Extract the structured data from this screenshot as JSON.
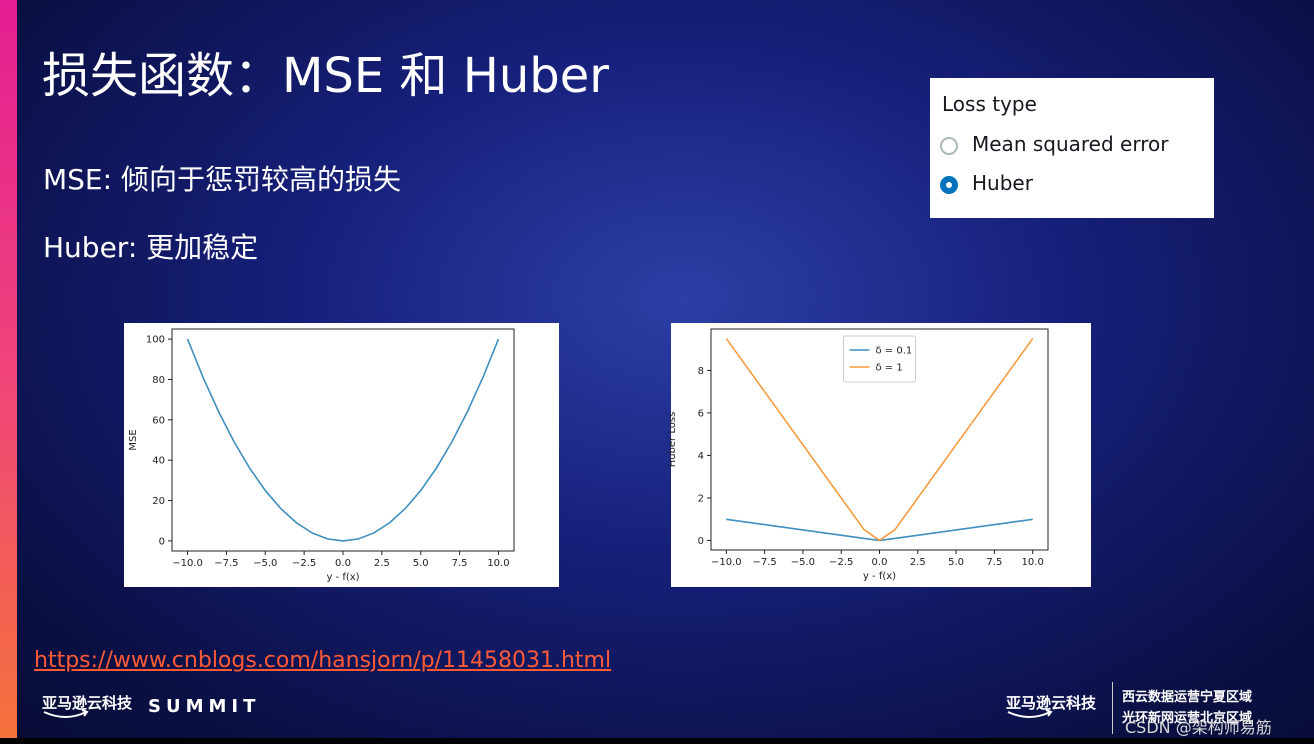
{
  "title": "损失函数：MSE 和 Huber",
  "bullets": [
    "MSE: 倾向于惩罚较高的损失",
    "Huber: 更加稳定"
  ],
  "loss_panel": {
    "label": "Loss type",
    "options": [
      {
        "label": "Mean squared error",
        "selected": false
      },
      {
        "label": "Huber",
        "selected": true
      }
    ]
  },
  "link": "https://www.cnblogs.com/hansjorn/p/11458031.html",
  "footer": {
    "brand": "亚马逊云科技",
    "event": "SUMMIT",
    "right_brand": "亚马逊云科技",
    "regions": [
      "西云数据运营宁夏区域",
      "光环新网运营北京区域"
    ],
    "watermark": "CSDN @架构师易筋"
  },
  "chart_data": [
    {
      "type": "line",
      "xlabel": "y - f(x)",
      "ylabel": "MSE",
      "x": [
        -10,
        -9,
        -8,
        -7,
        -6,
        -5,
        -4,
        -3,
        -2,
        -1,
        0,
        1,
        2,
        3,
        4,
        5,
        6,
        7,
        8,
        9,
        10
      ],
      "values": [
        100,
        81,
        64,
        49,
        36,
        25,
        16,
        9,
        4,
        1,
        0,
        1,
        4,
        9,
        16,
        25,
        36,
        49,
        64,
        81,
        100
      ],
      "color": "#3f8fbf",
      "xlim": [
        -11,
        11
      ],
      "ylim": [
        -5,
        105
      ],
      "xticks": [
        {
          "value": -10,
          "label": "−10.0"
        },
        {
          "value": -7.5,
          "label": "−7.5"
        },
        {
          "value": -5,
          "label": "−5.0"
        },
        {
          "value": -2.5,
          "label": "−2.5"
        },
        {
          "value": 0,
          "label": "0.0"
        },
        2.5,
        {
          "value": 5,
          "label": "5.0"
        },
        7.5,
        {
          "value": 10,
          "label": "10.0"
        }
      ],
      "yticks": [
        0,
        20,
        40,
        60,
        80,
        100
      ]
    },
    {
      "type": "line",
      "xlabel": "y - f(x)",
      "ylabel": "Huber Loss",
      "x": [
        -10,
        -9,
        -8,
        -7,
        -6,
        -5,
        -4,
        -3,
        -2,
        -1,
        0,
        1,
        2,
        3,
        4,
        5,
        6,
        7,
        8,
        9,
        10
      ],
      "series": [
        {
          "name": "δ = 0.1",
          "color": "#3f8fbf",
          "values": [
            0.995,
            0.895,
            0.795,
            0.695,
            0.595,
            0.495,
            0.395,
            0.295,
            0.195,
            0.095,
            0,
            0.095,
            0.195,
            0.295,
            0.395,
            0.495,
            0.595,
            0.695,
            0.795,
            0.895,
            0.995
          ]
        },
        {
          "name": "δ = 1",
          "color": "#f59a3c",
          "values": [
            9.5,
            8.5,
            7.5,
            6.5,
            5.5,
            4.5,
            3.5,
            2.5,
            1.5,
            0.5,
            0,
            0.5,
            1.5,
            2.5,
            3.5,
            4.5,
            5.5,
            6.5,
            7.5,
            8.5,
            9.5
          ]
        }
      ],
      "legend": "upper center",
      "xlim": [
        -11,
        11
      ],
      "ylim": [
        -0.45,
        9.95
      ],
      "xticks": [
        {
          "value": -10,
          "label": "−10.0"
        },
        {
          "value": -7.5,
          "label": "−7.5"
        },
        {
          "value": -5,
          "label": "−5.0"
        },
        {
          "value": -2.5,
          "label": "−2.5"
        },
        {
          "value": 0,
          "label": "0.0"
        },
        2.5,
        {
          "value": 5,
          "label": "5.0"
        },
        7.5,
        {
          "value": 10,
          "label": "10.0"
        }
      ],
      "yticks": [
        0,
        2,
        4,
        6,
        8
      ]
    }
  ]
}
